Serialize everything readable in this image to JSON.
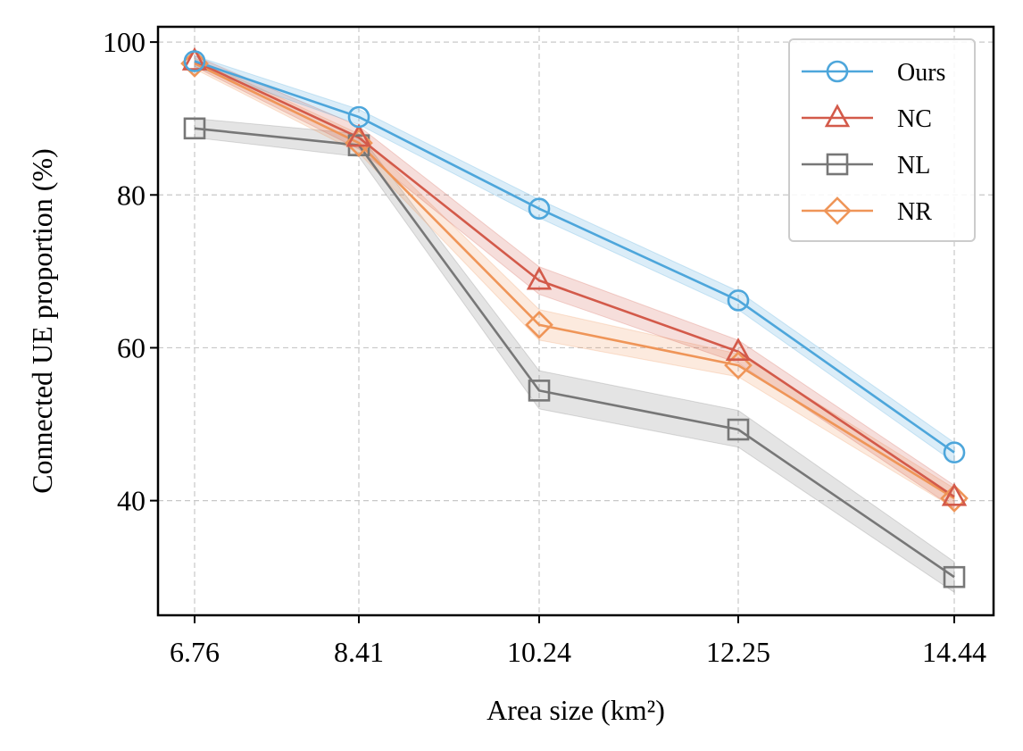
{
  "chart_data": {
    "type": "line",
    "xlabel": "Area size (km²)",
    "ylabel": "Connected UE proportion (%)",
    "x": [
      6.76,
      8.41,
      10.24,
      12.25,
      14.44
    ],
    "x_tick_labels": [
      "6.76",
      "8.41",
      "10.24",
      "12.25",
      "14.44"
    ],
    "ylim": [
      25,
      102
    ],
    "y_ticks": [
      40,
      60,
      80,
      100
    ],
    "y_tick_labels": [
      "40",
      "60",
      "80",
      "100"
    ],
    "grid": true,
    "legend_position": "top-right",
    "series": [
      {
        "name": "Ours",
        "color": "#4DA6DB",
        "marker": "circle",
        "values": [
          97.5,
          90.2,
          78.2,
          66.2,
          46.3
        ],
        "lower": [
          96.8,
          89.2,
          77.0,
          65.0,
          45.0
        ],
        "upper": [
          98.2,
          91.2,
          79.4,
          67.4,
          47.6
        ]
      },
      {
        "name": "NC",
        "color": "#D35A4A",
        "marker": "triangle",
        "values": [
          97.5,
          87.5,
          68.8,
          59.5,
          40.5
        ],
        "lower": [
          96.8,
          86.0,
          67.0,
          58.0,
          39.0
        ],
        "upper": [
          98.2,
          89.0,
          70.6,
          61.0,
          42.0
        ]
      },
      {
        "name": "NL",
        "color": "#777777",
        "marker": "square",
        "values": [
          88.7,
          86.5,
          54.4,
          49.3,
          30.0
        ],
        "lower": [
          87.5,
          85.0,
          52.0,
          47.0,
          28.0
        ],
        "upper": [
          90.0,
          88.0,
          57.0,
          51.8,
          32.0
        ]
      },
      {
        "name": "NR",
        "color": "#EF9558",
        "marker": "diamond",
        "values": [
          97.2,
          86.8,
          63.0,
          57.7,
          40.3
        ],
        "lower": [
          96.5,
          85.5,
          61.0,
          56.2,
          39.0
        ],
        "upper": [
          97.9,
          88.0,
          65.0,
          59.2,
          41.6
        ]
      }
    ]
  }
}
